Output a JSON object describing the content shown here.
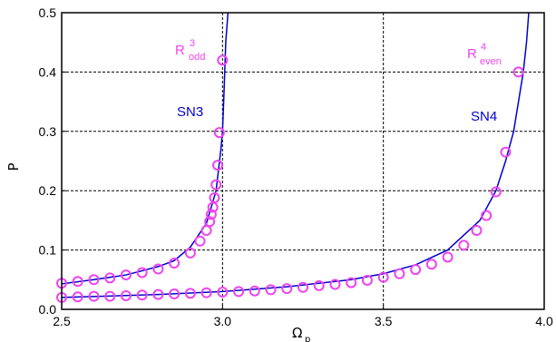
{
  "chart_data": {
    "type": "scatter",
    "xlabel": "Ω_p",
    "xlabel_main": "Ω",
    "xlabel_sub": "p",
    "ylabel": "P",
    "xlim": [
      2.5,
      4.0
    ],
    "ylim": [
      0.0,
      0.5
    ],
    "xticks": [
      2.5,
      3.0,
      3.5,
      4.0
    ],
    "xtick_labels": [
      "2.5",
      "3.0",
      "3.5",
      "4.0"
    ],
    "yticks": [
      0.0,
      0.1,
      0.2,
      0.3,
      0.4,
      0.5
    ],
    "ytick_labels": [
      "0.0",
      "0.1",
      "0.2",
      "0.3",
      "0.4",
      "0.5"
    ],
    "grid": "dashed at ticks",
    "colors": {
      "markers": "#ee44ee",
      "curves": "#0000cc",
      "grid": "#000000"
    },
    "curves": [
      {
        "name": "SN3",
        "label": "SN3",
        "x_pole": 3.02,
        "points": [
          [
            2.5,
            0.043
          ],
          [
            2.6,
            0.05
          ],
          [
            2.7,
            0.058
          ],
          [
            2.8,
            0.072
          ],
          [
            2.85,
            0.082
          ],
          [
            2.9,
            0.105
          ],
          [
            2.95,
            0.145
          ],
          [
            2.98,
            0.2
          ],
          [
            2.995,
            0.27
          ],
          [
            3.0,
            0.3
          ],
          [
            3.005,
            0.37
          ],
          [
            3.01,
            0.45
          ],
          [
            3.017,
            0.5
          ]
        ]
      },
      {
        "name": "SN4",
        "label": "SN4",
        "x_pole": 3.95,
        "points": [
          [
            2.5,
            0.02
          ],
          [
            2.8,
            0.025
          ],
          [
            3.0,
            0.03
          ],
          [
            3.2,
            0.038
          ],
          [
            3.4,
            0.05
          ],
          [
            3.5,
            0.06
          ],
          [
            3.6,
            0.075
          ],
          [
            3.7,
            0.1
          ],
          [
            3.8,
            0.15
          ],
          [
            3.85,
            0.2
          ],
          [
            3.88,
            0.25
          ],
          [
            3.905,
            0.3
          ],
          [
            3.92,
            0.35
          ],
          [
            3.935,
            0.4
          ],
          [
            3.945,
            0.45
          ],
          [
            3.952,
            0.5
          ]
        ]
      }
    ],
    "series": [
      {
        "name": "R_odd^3",
        "label_main": "R",
        "label_sup": "3",
        "label_sub": "odd",
        "points": [
          [
            2.5,
            0.044
          ],
          [
            2.55,
            0.047
          ],
          [
            2.6,
            0.05
          ],
          [
            2.65,
            0.053
          ],
          [
            2.7,
            0.058
          ],
          [
            2.75,
            0.062
          ],
          [
            2.8,
            0.068
          ],
          [
            2.85,
            0.078
          ],
          [
            2.9,
            0.095
          ],
          [
            2.93,
            0.115
          ],
          [
            2.95,
            0.133
          ],
          [
            2.96,
            0.148
          ],
          [
            2.965,
            0.16
          ],
          [
            2.97,
            0.172
          ],
          [
            2.975,
            0.188
          ],
          [
            2.98,
            0.21
          ],
          [
            2.985,
            0.243
          ],
          [
            2.99,
            0.298
          ],
          [
            3.0,
            0.42
          ]
        ]
      },
      {
        "name": "R_even^4",
        "label_main": "R",
        "label_sup": "4",
        "label_sub": "even",
        "points": [
          [
            2.5,
            0.02
          ],
          [
            2.55,
            0.021
          ],
          [
            2.6,
            0.022
          ],
          [
            2.65,
            0.022
          ],
          [
            2.7,
            0.023
          ],
          [
            2.75,
            0.024
          ],
          [
            2.8,
            0.025
          ],
          [
            2.85,
            0.026
          ],
          [
            2.9,
            0.027
          ],
          [
            2.95,
            0.028
          ],
          [
            3.0,
            0.029
          ],
          [
            3.05,
            0.03
          ],
          [
            3.1,
            0.031
          ],
          [
            3.15,
            0.033
          ],
          [
            3.2,
            0.035
          ],
          [
            3.25,
            0.037
          ],
          [
            3.3,
            0.04
          ],
          [
            3.35,
            0.042
          ],
          [
            3.4,
            0.045
          ],
          [
            3.45,
            0.049
          ],
          [
            3.5,
            0.054
          ],
          [
            3.55,
            0.06
          ],
          [
            3.6,
            0.067
          ],
          [
            3.65,
            0.076
          ],
          [
            3.7,
            0.088
          ],
          [
            3.75,
            0.108
          ],
          [
            3.79,
            0.133
          ],
          [
            3.82,
            0.158
          ],
          [
            3.85,
            0.198
          ],
          [
            3.88,
            0.265
          ],
          [
            3.92,
            0.4
          ]
        ]
      }
    ]
  }
}
